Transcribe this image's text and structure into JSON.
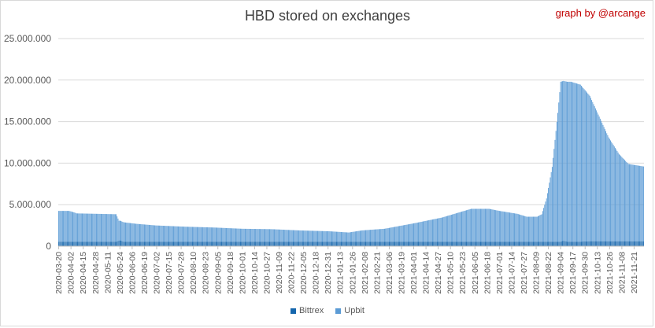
{
  "title": "HBD stored on exchanges",
  "credit": "graph by @arcange",
  "colors": {
    "bittrex": "#1566ad",
    "upbit": "#5b9bd5",
    "grid": "#d9d9d9",
    "axis": "#bfbfbf"
  },
  "chart_data": {
    "type": "bar",
    "stacked": true,
    "title": "HBD stored on exchanges",
    "xlabel": "",
    "ylabel": "",
    "ylim": [
      0,
      25000000
    ],
    "yticks": [
      "0",
      "5.000.000",
      "10.000.000",
      "15.000.000",
      "20.000.000",
      "25.000.000"
    ],
    "grid": true,
    "legend_position": "bottom",
    "x_start": "2020-03-20",
    "x_end": "2021-12-01",
    "tick_labels": [
      "2020-03-20",
      "2020-04-02",
      "2020-04-15",
      "2020-04-28",
      "2020-05-11",
      "2020-05-24",
      "2020-06-06",
      "2020-06-19",
      "2020-07-02",
      "2020-07-15",
      "2020-07-28",
      "2020-08-10",
      "2020-08-23",
      "2020-09-05",
      "2020-09-18",
      "2020-10-01",
      "2020-10-14",
      "2020-10-27",
      "2020-11-09",
      "2020-11-22",
      "2020-12-05",
      "2020-12-18",
      "2020-12-31",
      "2021-01-13",
      "2021-01-26",
      "2021-02-08",
      "2021-02-21",
      "2021-03-06",
      "2021-03-19",
      "2021-04-01",
      "2021-04-14",
      "2021-04-27",
      "2021-05-10",
      "2021-05-23",
      "2021-06-05",
      "2021-06-18",
      "2021-07-01",
      "2021-07-14",
      "2021-07-27",
      "2021-08-09",
      "2021-08-22",
      "2021-09-04",
      "2021-09-17",
      "2021-09-30",
      "2021-10-13",
      "2021-10-26",
      "2021-11-08",
      "2021-11-21"
    ],
    "series": [
      {
        "name": "Bittrex",
        "color": "#1566ad",
        "points": [
          [
            "2020-03-20",
            550000
          ],
          [
            "2020-05-20",
            550000
          ],
          [
            "2020-05-24",
            700000
          ],
          [
            "2020-05-28",
            550000
          ],
          [
            "2021-09-04",
            550000
          ],
          [
            "2021-09-07",
            650000
          ],
          [
            "2021-09-11",
            550000
          ],
          [
            "2021-09-25",
            550000
          ],
          [
            "2021-10-05",
            600000
          ],
          [
            "2021-12-01",
            600000
          ]
        ]
      },
      {
        "name": "Upbit",
        "color": "#5b9bd5",
        "points": [
          [
            "2020-03-20",
            3700000
          ],
          [
            "2020-03-31",
            3700000
          ],
          [
            "2020-04-06",
            3500000
          ],
          [
            "2020-04-08",
            3400000
          ],
          [
            "2020-05-20",
            3300000
          ],
          [
            "2020-05-23",
            2400000
          ],
          [
            "2020-06-10",
            2150000
          ],
          [
            "2020-07-01",
            1950000
          ],
          [
            "2020-08-01",
            1800000
          ],
          [
            "2020-09-01",
            1700000
          ],
          [
            "2020-10-01",
            1550000
          ],
          [
            "2020-11-01",
            1500000
          ],
          [
            "2020-12-01",
            1350000
          ],
          [
            "2021-01-01",
            1250000
          ],
          [
            "2021-01-15",
            1150000
          ],
          [
            "2021-01-22",
            1100000
          ],
          [
            "2021-02-05",
            1350000
          ],
          [
            "2021-03-01",
            1550000
          ],
          [
            "2021-04-01",
            2200000
          ],
          [
            "2021-05-01",
            2900000
          ],
          [
            "2021-06-01",
            3950000
          ],
          [
            "2021-06-20",
            3950000
          ],
          [
            "2021-07-01",
            3700000
          ],
          [
            "2021-07-20",
            3350000
          ],
          [
            "2021-07-30",
            3000000
          ],
          [
            "2021-08-10",
            3000000
          ],
          [
            "2021-08-15",
            3300000
          ],
          [
            "2021-08-20",
            5200000
          ],
          [
            "2021-08-26",
            9000000
          ],
          [
            "2021-09-01",
            15500000
          ],
          [
            "2021-09-04",
            19250000
          ],
          [
            "2021-09-15",
            19250000
          ],
          [
            "2021-09-25",
            18900000
          ],
          [
            "2021-10-05",
            17500000
          ],
          [
            "2021-10-15",
            15000000
          ],
          [
            "2021-10-25",
            12500000
          ],
          [
            "2021-11-05",
            10500000
          ],
          [
            "2021-11-15",
            9300000
          ],
          [
            "2021-12-01",
            9000000
          ]
        ]
      }
    ]
  }
}
